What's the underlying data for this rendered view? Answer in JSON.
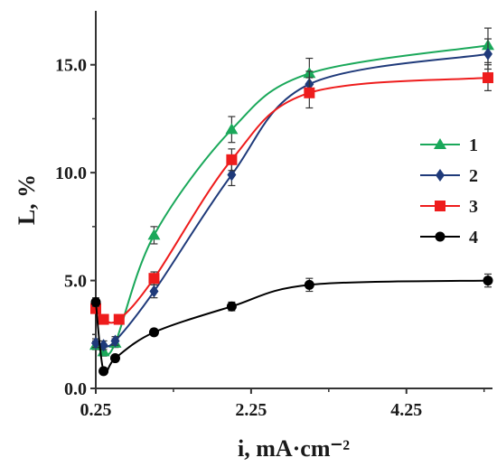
{
  "chart_data": {
    "type": "line",
    "xlabel": "i, mA·cm⁻²",
    "ylabel": "L, %",
    "xlim": [
      0.25,
      5.3
    ],
    "ylim": [
      0,
      17.5
    ],
    "x_ticks": [
      "0.25",
      "2.25",
      "4.25"
    ],
    "y_ticks": [
      "0.0",
      "5.0",
      "10.0",
      "15.0"
    ],
    "grid": false,
    "legend_position": "right-middle",
    "series": [
      {
        "name": "1",
        "color": "#1aa85a",
        "marker": "triangle",
        "points": [
          [
            0.25,
            2.0
          ],
          [
            0.35,
            1.7
          ],
          [
            0.5,
            2.1
          ],
          [
            1.0,
            7.1
          ],
          [
            2.0,
            12.0
          ],
          [
            3.0,
            14.6
          ],
          [
            5.3,
            15.9
          ]
        ],
        "errors": [
          0.2,
          0.2,
          0.2,
          0.4,
          0.6,
          0.7,
          0.8
        ]
      },
      {
        "name": "2",
        "color": "#1f3a7a",
        "marker": "diamond",
        "points": [
          [
            0.25,
            2.1
          ],
          [
            0.35,
            2.0
          ],
          [
            0.5,
            2.2
          ],
          [
            1.0,
            4.5
          ],
          [
            2.0,
            9.9
          ],
          [
            3.0,
            14.1
          ],
          [
            5.3,
            15.5
          ]
        ],
        "errors": [
          0.2,
          0.2,
          0.2,
          0.3,
          0.5,
          0.6,
          0.7
        ]
      },
      {
        "name": "3",
        "color": "#ee1c1c",
        "marker": "square",
        "points": [
          [
            0.25,
            3.7
          ],
          [
            0.35,
            3.2
          ],
          [
            0.55,
            3.2
          ],
          [
            1.0,
            5.1
          ],
          [
            2.0,
            10.6
          ],
          [
            3.0,
            13.7
          ],
          [
            5.3,
            14.4
          ]
        ],
        "errors": [
          0.2,
          0.2,
          0.2,
          0.3,
          0.5,
          0.7,
          0.6
        ]
      },
      {
        "name": "4",
        "color": "#000000",
        "marker": "circle",
        "points": [
          [
            0.25,
            4.0
          ],
          [
            0.35,
            0.8
          ],
          [
            0.5,
            1.4
          ],
          [
            1.0,
            2.6
          ],
          [
            2.0,
            3.8
          ],
          [
            3.0,
            4.8
          ],
          [
            5.3,
            5.0
          ]
        ],
        "errors": [
          0.2,
          0.15,
          0.15,
          0.15,
          0.2,
          0.3,
          0.3
        ]
      }
    ]
  }
}
